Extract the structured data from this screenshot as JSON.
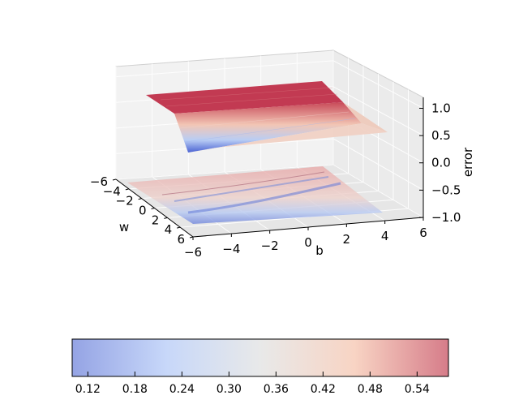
{
  "chart_data": {
    "type": "surface3d",
    "axes": {
      "x": {
        "label": "w",
        "range": [
          -6,
          6
        ],
        "ticks": [
          -6,
          -4,
          -2,
          0,
          2,
          4,
          6
        ],
        "tick_labels": [
          "−6",
          "−4",
          "−2",
          "0",
          "2",
          "4",
          "6"
        ]
      },
      "y": {
        "label": "b",
        "range": [
          -6,
          6
        ],
        "ticks": [
          -6,
          -4,
          -2,
          0,
          2,
          4,
          6
        ],
        "tick_labels": [
          "−6",
          "−4",
          "−2",
          "0",
          "2",
          "4",
          "6"
        ]
      },
      "z": {
        "label": "error",
        "range": [
          -1,
          1.2
        ],
        "ticks": [
          -1.0,
          -0.5,
          0.0,
          0.5,
          1.0
        ],
        "tick_labels": [
          "−1.0",
          "−0.5",
          "0.0",
          "0.5",
          "1.0"
        ]
      }
    },
    "surface": {
      "description_values": "sigmoid-shaped error surface over (w, b)",
      "z_high": 1.0,
      "z_low": 0.1,
      "z_plane": 0.35
    },
    "projection": {
      "z_offset": -1.0
    },
    "grid": true,
    "colormap": "coolwarm",
    "colorbar": {
      "orientation": "horizontal",
      "range": [
        0.1,
        0.58
      ],
      "ticks": [
        0.12,
        0.18,
        0.24,
        0.3,
        0.36,
        0.42,
        0.48,
        0.54
      ],
      "tick_labels": [
        "0.12",
        "0.18",
        "0.24",
        "0.30",
        "0.36",
        "0.42",
        "0.48",
        "0.54"
      ],
      "colors": [
        "#5b72d6",
        "#a9c2f6",
        "#dcdddd",
        "#f4bda4",
        "#c0364a"
      ]
    }
  }
}
